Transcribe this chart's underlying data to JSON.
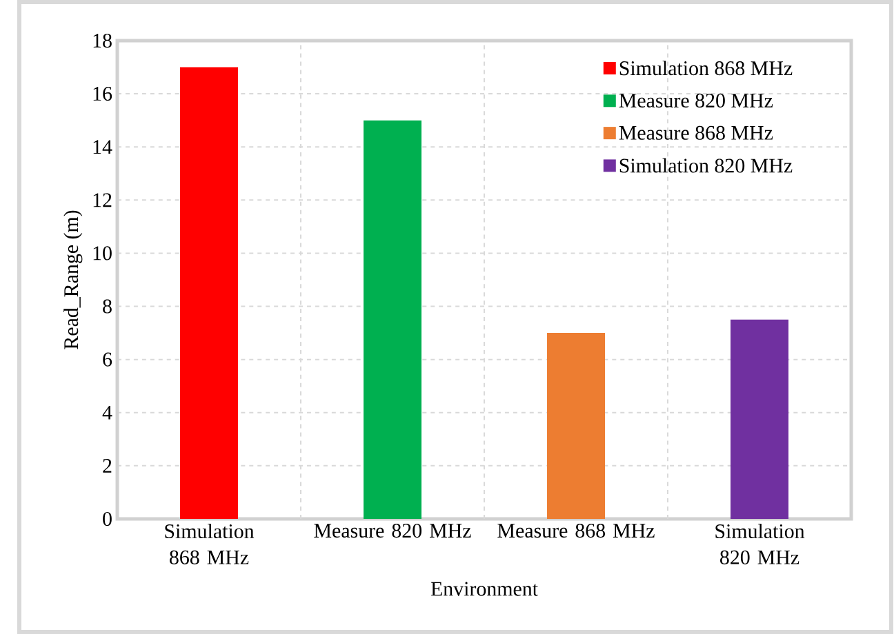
{
  "chart_data": {
    "type": "bar",
    "xlabel": "Environment",
    "ylabel": "Read_Range (m)",
    "categories": [
      "Simulation 868 MHz",
      "Measure 820 MHz",
      "Measure  868 MHz",
      "Simulation 820 MHz"
    ],
    "series": [
      {
        "name": "Simulation 868 MHz",
        "color": "#ff0000",
        "values": [
          17,
          null,
          null,
          null
        ]
      },
      {
        "name": "Measure 820 MHz",
        "color": "#00b050",
        "values": [
          null,
          15,
          null,
          null
        ]
      },
      {
        "name": "Measure  868 MHz",
        "color": "#ed7d31",
        "values": [
          null,
          null,
          7,
          null
        ]
      },
      {
        "name": "Simulation 820 MHz",
        "color": "#7030a0",
        "values": [
          null,
          null,
          null,
          7.5
        ]
      }
    ],
    "ylim": [
      0,
      18
    ],
    "yticks": [
      0,
      2,
      4,
      6,
      8,
      10,
      12,
      14,
      16,
      18
    ],
    "grid": true,
    "legend": "top right"
  }
}
